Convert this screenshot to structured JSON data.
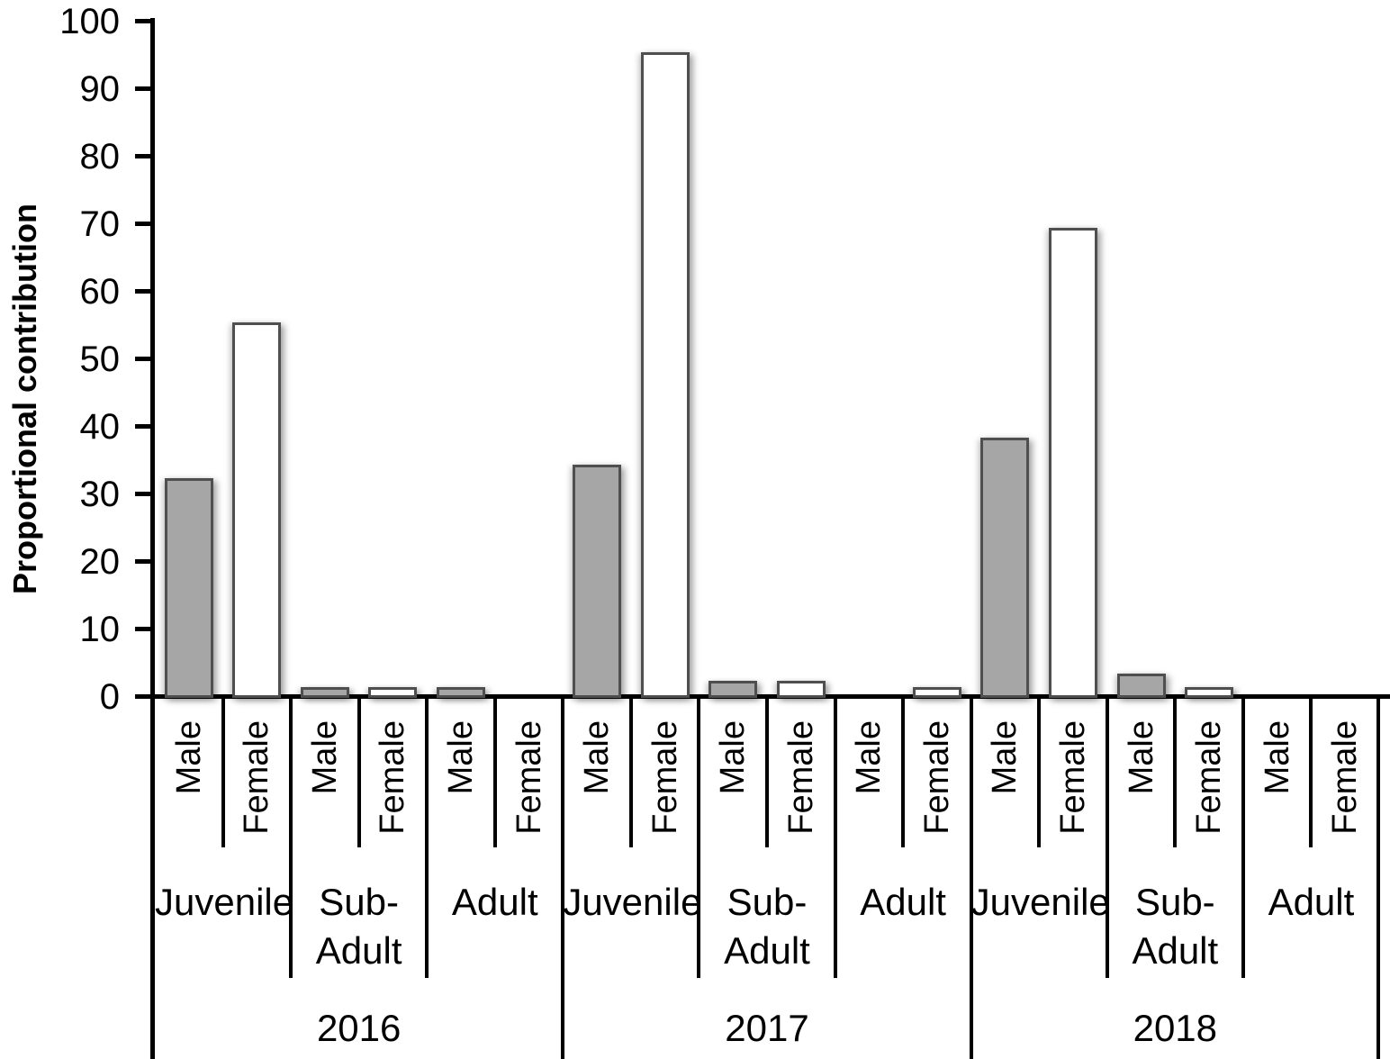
{
  "chart_data": {
    "type": "bar",
    "title": "",
    "ylabel": "Proportional contribution",
    "xlabel": "",
    "ylim": [
      0,
      100
    ],
    "ytick_step": 10,
    "yticks": [
      0,
      10,
      20,
      30,
      40,
      50,
      60,
      70,
      80,
      90,
      100
    ],
    "grid": false,
    "legend_position": "none",
    "axis_color": "#000000",
    "bar_style": {
      "male_fill": "#a6a6a6",
      "female_fill": "#ffffff",
      "border": "#4f4f4f"
    },
    "x_hierarchy": {
      "years": [
        "2016",
        "2017",
        "2018"
      ],
      "age_classes": [
        {
          "name": "Juvenile",
          "display": "Juvenile"
        },
        {
          "name": "Sub-Adult",
          "display": "Sub-\nAdult"
        },
        {
          "name": "Adult",
          "display": "Adult"
        }
      ],
      "sexes": [
        "Male",
        "Female"
      ]
    },
    "values": [
      {
        "year": "2016",
        "age": "Juvenile",
        "sex": "Male",
        "value": 32
      },
      {
        "year": "2016",
        "age": "Juvenile",
        "sex": "Female",
        "value": 55
      },
      {
        "year": "2016",
        "age": "Sub-Adult",
        "sex": "Male",
        "value": 1
      },
      {
        "year": "2016",
        "age": "Sub-Adult",
        "sex": "Female",
        "value": 1
      },
      {
        "year": "2016",
        "age": "Adult",
        "sex": "Male",
        "value": 1
      },
      {
        "year": "2016",
        "age": "Adult",
        "sex": "Female",
        "value": 0
      },
      {
        "year": "2017",
        "age": "Juvenile",
        "sex": "Male",
        "value": 34
      },
      {
        "year": "2017",
        "age": "Juvenile",
        "sex": "Female",
        "value": 95
      },
      {
        "year": "2017",
        "age": "Sub-Adult",
        "sex": "Male",
        "value": 2
      },
      {
        "year": "2017",
        "age": "Sub-Adult",
        "sex": "Female",
        "value": 2
      },
      {
        "year": "2017",
        "age": "Adult",
        "sex": "Male",
        "value": 0
      },
      {
        "year": "2017",
        "age": "Adult",
        "sex": "Female",
        "value": 1
      },
      {
        "year": "2018",
        "age": "Juvenile",
        "sex": "Male",
        "value": 38
      },
      {
        "year": "2018",
        "age": "Juvenile",
        "sex": "Female",
        "value": 69
      },
      {
        "year": "2018",
        "age": "Sub-Adult",
        "sex": "Male",
        "value": 3
      },
      {
        "year": "2018",
        "age": "Sub-Adult",
        "sex": "Female",
        "value": 1
      },
      {
        "year": "2018",
        "age": "Adult",
        "sex": "Male",
        "value": 0
      },
      {
        "year": "2018",
        "age": "Adult",
        "sex": "Female",
        "value": 0
      }
    ]
  }
}
